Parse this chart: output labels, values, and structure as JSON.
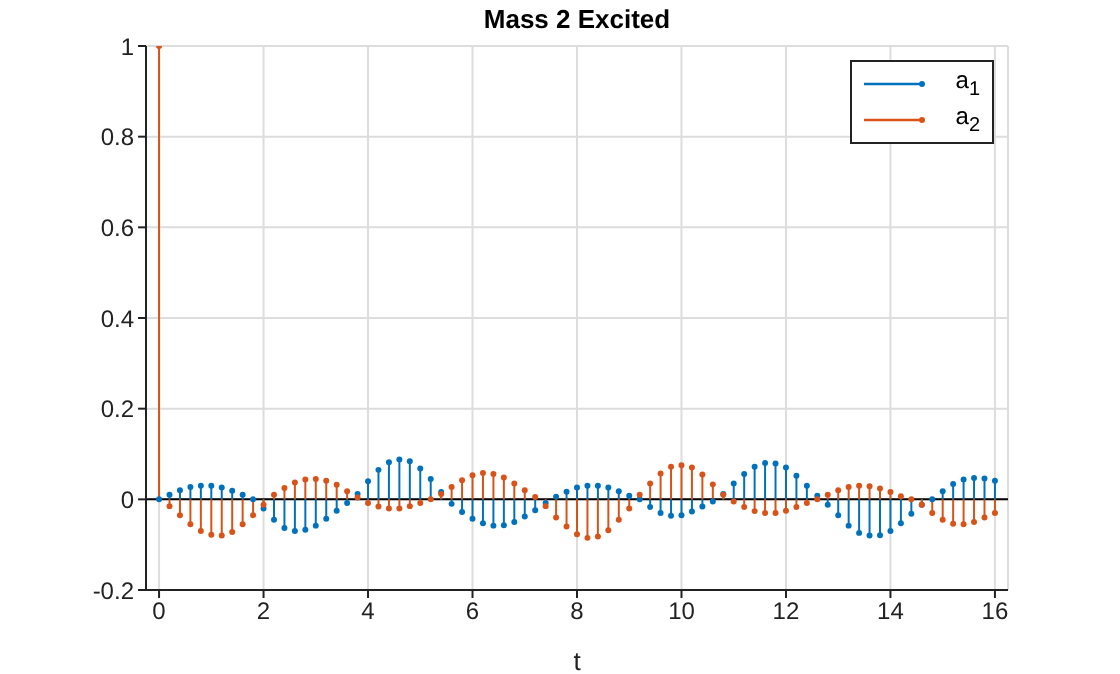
{
  "chart_data": {
    "type": "lollipop",
    "title": "Mass 2 Excited",
    "xlabel": "t",
    "x": [
      0,
      0.2,
      0.4,
      0.6,
      0.8,
      1,
      1.2,
      1.4,
      1.6,
      1.8,
      2,
      2.2,
      2.4,
      2.6,
      2.8,
      3,
      3.2,
      3.4,
      3.6,
      3.8,
      4,
      4.2,
      4.4,
      4.6,
      4.8,
      5,
      5.2,
      5.4,
      5.6,
      5.8,
      6,
      6.2,
      6.4,
      6.6,
      6.8,
      7,
      7.2,
      7.4,
      7.6,
      7.8,
      8,
      8.2,
      8.4,
      8.6,
      8.8,
      9,
      9.2,
      9.4,
      9.6,
      9.8,
      10,
      10.2,
      10.4,
      10.6,
      10.8,
      11,
      11.2,
      11.4,
      11.6,
      11.8,
      12,
      12.2,
      12.4,
      12.6,
      12.8,
      13,
      13.2,
      13.4,
      13.6,
      13.8,
      14,
      14.2,
      14.4,
      14.6,
      14.8,
      15,
      15.2,
      15.4,
      15.6,
      15.8,
      16
    ],
    "series": [
      {
        "name": "a$_{1}$",
        "color": "#0072bd",
        "values": [
          0,
          0.01,
          0.02,
          0.027,
          0.03,
          0.03,
          0.026,
          0.019,
          0.01,
          0,
          -0.02,
          -0.045,
          -0.063,
          -0.07,
          -0.067,
          -0.058,
          -0.043,
          -0.025,
          -0.008,
          0.012,
          0.04,
          0.065,
          0.082,
          0.088,
          0.084,
          0.068,
          0.045,
          0.016,
          -0.01,
          -0.028,
          -0.043,
          -0.053,
          -0.058,
          -0.057,
          -0.05,
          -0.038,
          -0.024,
          -0.008,
          0.006,
          0.017,
          0.026,
          0.03,
          0.03,
          0.026,
          0.018,
          0.008,
          0,
          -0.017,
          -0.03,
          -0.036,
          -0.035,
          -0.027,
          -0.016,
          -0.005,
          0.012,
          0.035,
          0.056,
          0.072,
          0.08,
          0.079,
          0.07,
          0.052,
          0.03,
          0.008,
          -0.012,
          -0.035,
          -0.058,
          -0.074,
          -0.08,
          -0.079,
          -0.07,
          -0.053,
          -0.032,
          -0.012,
          0,
          0.018,
          0.034,
          0.044,
          0.047,
          0.046,
          0.041
        ]
      },
      {
        "name": "a$_{2}$",
        "color": "#d95319",
        "values": [
          1,
          -0.015,
          -0.035,
          -0.055,
          -0.07,
          -0.078,
          -0.08,
          -0.072,
          -0.055,
          -0.035,
          -0.012,
          0.01,
          0.025,
          0.037,
          0.044,
          0.045,
          0.041,
          0.032,
          0.018,
          0.004,
          -0.008,
          -0.016,
          -0.02,
          -0.02,
          -0.015,
          -0.008,
          0,
          0.012,
          0.027,
          0.042,
          0.053,
          0.058,
          0.056,
          0.048,
          0.035,
          0.02,
          0.005,
          -0.015,
          -0.04,
          -0.06,
          -0.077,
          -0.085,
          -0.082,
          -0.068,
          -0.045,
          -0.02,
          0.01,
          0.035,
          0.057,
          0.072,
          0.075,
          0.07,
          0.055,
          0.033,
          0.01,
          -0.005,
          -0.017,
          -0.026,
          -0.03,
          -0.03,
          -0.025,
          -0.017,
          -0.008,
          0,
          0.01,
          0.02,
          0.027,
          0.03,
          0.029,
          0.024,
          0.016,
          0.007,
          0,
          -0.012,
          -0.03,
          -0.045,
          -0.054,
          -0.055,
          -0.05,
          -0.04,
          -0.03
        ]
      }
    ],
    "xlim": [
      -0.25,
      16.25
    ],
    "xticks": [
      0,
      2,
      4,
      6,
      8,
      10,
      12,
      14,
      16
    ],
    "ylim": [
      -0.2,
      1
    ],
    "yticks": [
      -0.2,
      0,
      0.2,
      0.4,
      0.6,
      0.8,
      1
    ],
    "ref_lines": [
      {
        "axis": "y",
        "value": 0,
        "color": "#000000"
      }
    ],
    "grid": true,
    "legend": "top right",
    "marker": "circle"
  }
}
